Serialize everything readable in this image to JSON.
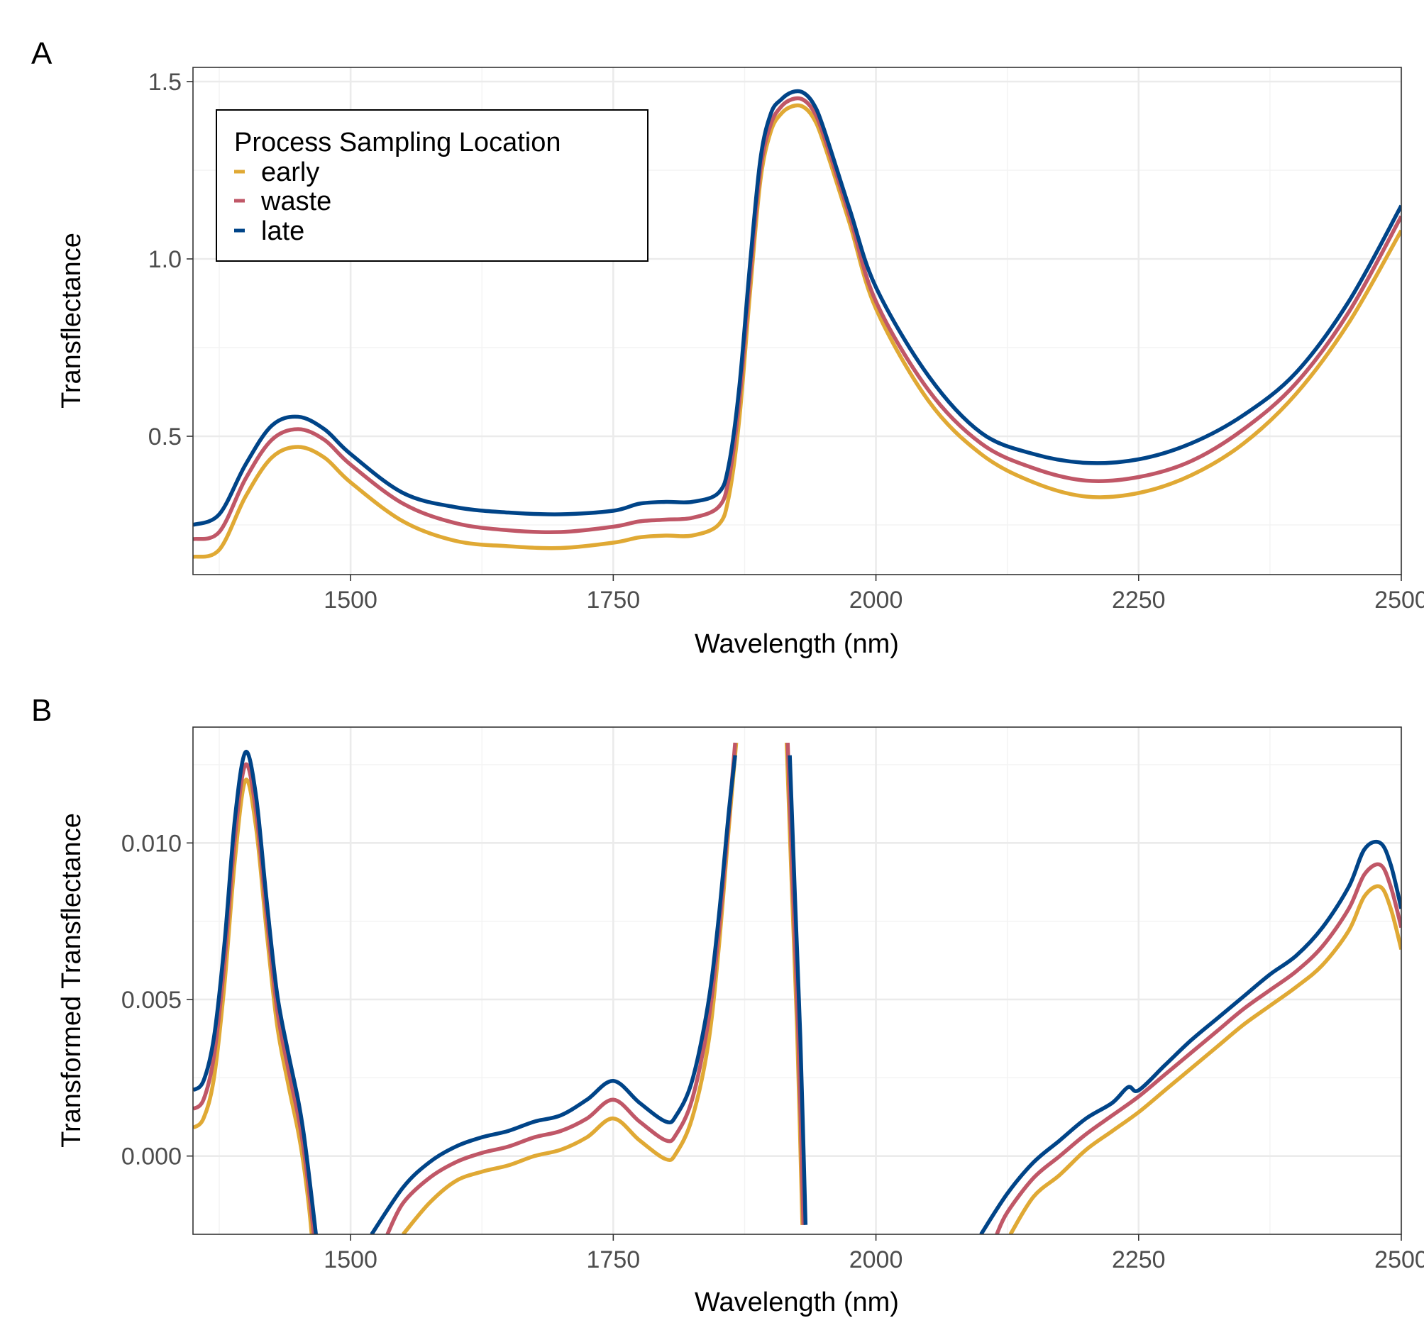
{
  "colors": {
    "early": "#E0A934",
    "waste": "#C05767",
    "late": "#004488"
  },
  "legend": {
    "title": "Process Sampling Location",
    "position": "top-left",
    "entries": [
      "early",
      "waste",
      "late"
    ]
  },
  "chart_data": [
    {
      "type": "line",
      "tag": "A",
      "xlabel": "Wavelength (nm)",
      "ylabel": "Transflectance",
      "xlim": [
        1350,
        2500
      ],
      "ylim": [
        0.11,
        1.54
      ],
      "xticks": [
        1500,
        1750,
        2000,
        2250,
        2500
      ],
      "xtick_labels": [
        "1500",
        "1750",
        "2000",
        "2250",
        "2500"
      ],
      "yticks": [
        0.5,
        1.0,
        1.5
      ],
      "ytick_labels": [
        "0.5",
        "1.0",
        "1.5"
      ],
      "grid": true,
      "x": [
        1350,
        1375,
        1400,
        1425,
        1450,
        1475,
        1500,
        1550,
        1600,
        1650,
        1700,
        1750,
        1775,
        1800,
        1825,
        1850,
        1860,
        1870,
        1880,
        1890,
        1900,
        1910,
        1920,
        1930,
        1940,
        1950,
        1975,
        2000,
        2050,
        2100,
        2150,
        2200,
        2250,
        2300,
        2350,
        2400,
        2450,
        2500
      ],
      "series": [
        {
          "name": "early",
          "values": [
            0.16,
            0.18,
            0.33,
            0.44,
            0.47,
            0.44,
            0.37,
            0.26,
            0.205,
            0.19,
            0.185,
            0.2,
            0.215,
            0.22,
            0.22,
            0.25,
            0.33,
            0.55,
            0.9,
            1.22,
            1.36,
            1.41,
            1.43,
            1.43,
            1.4,
            1.33,
            1.1,
            0.86,
            0.6,
            0.45,
            0.37,
            0.33,
            0.34,
            0.39,
            0.48,
            0.62,
            0.82,
            1.08
          ]
        },
        {
          "name": "waste",
          "values": [
            0.21,
            0.23,
            0.38,
            0.49,
            0.52,
            0.49,
            0.42,
            0.31,
            0.255,
            0.235,
            0.23,
            0.245,
            0.26,
            0.265,
            0.27,
            0.3,
            0.38,
            0.6,
            0.94,
            1.25,
            1.38,
            1.43,
            1.45,
            1.45,
            1.42,
            1.35,
            1.12,
            0.88,
            0.63,
            0.48,
            0.41,
            0.375,
            0.385,
            0.43,
            0.52,
            0.65,
            0.85,
            1.12
          ]
        },
        {
          "name": "late",
          "values": [
            0.25,
            0.28,
            0.42,
            0.53,
            0.555,
            0.52,
            0.45,
            0.34,
            0.3,
            0.285,
            0.28,
            0.29,
            0.31,
            0.315,
            0.315,
            0.34,
            0.42,
            0.64,
            0.98,
            1.28,
            1.41,
            1.45,
            1.47,
            1.47,
            1.44,
            1.37,
            1.14,
            0.92,
            0.67,
            0.51,
            0.45,
            0.425,
            0.435,
            0.48,
            0.56,
            0.68,
            0.88,
            1.15
          ]
        }
      ]
    },
    {
      "type": "line",
      "tag": "B",
      "xlabel": "Wavelength (nm)",
      "ylabel": "Transformed Transflectance",
      "xlim": [
        1350,
        2500
      ],
      "ylim": [
        -0.0025,
        0.0137
      ],
      "xticks": [
        1500,
        1750,
        2000,
        2250,
        2500
      ],
      "xtick_labels": [
        "1500",
        "1750",
        "2000",
        "2250",
        "2500"
      ],
      "yticks": [
        0.0,
        0.005,
        0.01
      ],
      "ytick_labels": [
        "0.000",
        "0.005",
        "0.010"
      ],
      "grid": true,
      "segments_note": "",
      "series": [
        {
          "name": "early",
          "segments": [
            {
              "x": [
                1350,
                1360,
                1370,
                1380,
                1390,
                1400,
                1410,
                1420,
                1430,
                1440,
                1450,
                1455,
                1460,
                1463
              ],
              "y": [
                0.0009,
                0.0012,
                0.0025,
                0.0055,
                0.0095,
                0.012,
                0.0105,
                0.0072,
                0.0042,
                0.0024,
                0.0008,
                -0.0002,
                -0.0015,
                -0.0025
              ]
            },
            {
              "x": [
                1550,
                1575,
                1600,
                1625,
                1650,
                1675,
                1700,
                1725,
                1750,
                1775,
                1800,
                1810,
                1825,
                1840,
                1850,
                1860,
                1867
              ],
              "y": [
                -0.0025,
                -0.0015,
                -0.0008,
                -0.0005,
                -0.0003,
                0.0,
                0.0002,
                0.0006,
                0.0012,
                0.0005,
                -0.0001,
                0.0001,
                0.0012,
                0.0035,
                0.0065,
                0.0105,
                0.0132
              ]
            },
            {
              "x": [
                1915,
                1920,
                1925,
                1930
              ],
              "y": [
                0.0132,
                0.0085,
                0.004,
                -0.0022
              ]
            },
            {
              "x": [
                2128,
                2150,
                2175,
                2200,
                2225,
                2250,
                2275,
                2300,
                2325,
                2350,
                2375,
                2400,
                2425,
                2450,
                2465,
                2480,
                2490,
                2500
              ],
              "y": [
                -0.0025,
                -0.0013,
                -0.0006,
                0.0002,
                0.0008,
                0.0014,
                0.0021,
                0.0028,
                0.0035,
                0.0042,
                0.0048,
                0.0054,
                0.0061,
                0.0072,
                0.0083,
                0.0086,
                0.0079,
                0.0066
              ]
            }
          ]
        },
        {
          "name": "waste",
          "values_note": "",
          "segments": [
            {
              "x": [
                1350,
                1360,
                1370,
                1380,
                1390,
                1400,
                1410,
                1420,
                1430,
                1440,
                1450,
                1455,
                1460,
                1465
              ],
              "y": [
                0.0015,
                0.0018,
                0.0032,
                0.0062,
                0.0102,
                0.0125,
                0.011,
                0.0077,
                0.0047,
                0.0029,
                0.0013,
                0.0003,
                -0.001,
                -0.0025
              ]
            },
            {
              "x": [
                1535,
                1550,
                1575,
                1600,
                1625,
                1650,
                1675,
                1700,
                1725,
                1750,
                1775,
                1800,
                1810,
                1825,
                1840,
                1850,
                1860,
                1866
              ],
              "y": [
                -0.0025,
                -0.0015,
                -0.0007,
                -0.0002,
                0.0001,
                0.0003,
                0.0006,
                0.0008,
                0.0012,
                0.0018,
                0.0011,
                0.0005,
                0.0007,
                0.0018,
                0.0042,
                0.007,
                0.0108,
                0.0132
              ]
            },
            {
              "x": [
                1916,
                1921,
                1926,
                1931
              ],
              "y": [
                0.0132,
                0.0085,
                0.004,
                -0.0022
              ]
            },
            {
              "x": [
                2115,
                2125,
                2150,
                2175,
                2200,
                2225,
                2250,
                2275,
                2300,
                2325,
                2350,
                2375,
                2400,
                2425,
                2450,
                2465,
                2480,
                2490,
                2500
              ],
              "y": [
                -0.0025,
                -0.0018,
                -0.0007,
                0.0,
                0.0007,
                0.0013,
                0.0019,
                0.0026,
                0.0033,
                0.004,
                0.0047,
                0.0053,
                0.0059,
                0.0067,
                0.0079,
                0.009,
                0.0093,
                0.0086,
                0.0073
              ]
            }
          ]
        },
        {
          "name": "late",
          "segments": [
            {
              "x": [
                1350,
                1360,
                1370,
                1380,
                1390,
                1400,
                1410,
                1420,
                1430,
                1440,
                1450,
                1455,
                1460,
                1467
              ],
              "y": [
                0.0021,
                0.0024,
                0.0038,
                0.0068,
                0.0108,
                0.0129,
                0.0115,
                0.0082,
                0.0052,
                0.0034,
                0.0018,
                0.0008,
                -0.0005,
                -0.0025
              ]
            },
            {
              "x": [
                1520,
                1550,
                1575,
                1600,
                1625,
                1650,
                1675,
                1700,
                1725,
                1750,
                1775,
                1800,
                1810,
                1825,
                1840,
                1850,
                1860,
                1866
              ],
              "y": [
                -0.0025,
                -0.001,
                -0.0002,
                0.0003,
                0.0006,
                0.0008,
                0.0011,
                0.0013,
                0.0018,
                0.0024,
                0.0017,
                0.0011,
                0.0013,
                0.0024,
                0.0048,
                0.0075,
                0.011,
                0.0128
              ]
            },
            {
              "x": [
                1918,
                1923,
                1928,
                1933
              ],
              "y": [
                0.0128,
                0.0082,
                0.0038,
                -0.0022
              ]
            },
            {
              "x": [
                2100,
                2125,
                2150,
                2175,
                2200,
                2225,
                2240,
                2250,
                2275,
                2300,
                2325,
                2350,
                2375,
                2400,
                2425,
                2450,
                2465,
                2480,
                2490,
                2500
              ],
              "y": [
                -0.0025,
                -0.0012,
                -0.0002,
                0.0005,
                0.0012,
                0.0017,
                0.0022,
                0.0021,
                0.0029,
                0.0037,
                0.0044,
                0.0051,
                0.0058,
                0.0064,
                0.0073,
                0.0086,
                0.0098,
                0.01,
                0.0093,
                0.0079
              ]
            }
          ]
        }
      ]
    }
  ]
}
